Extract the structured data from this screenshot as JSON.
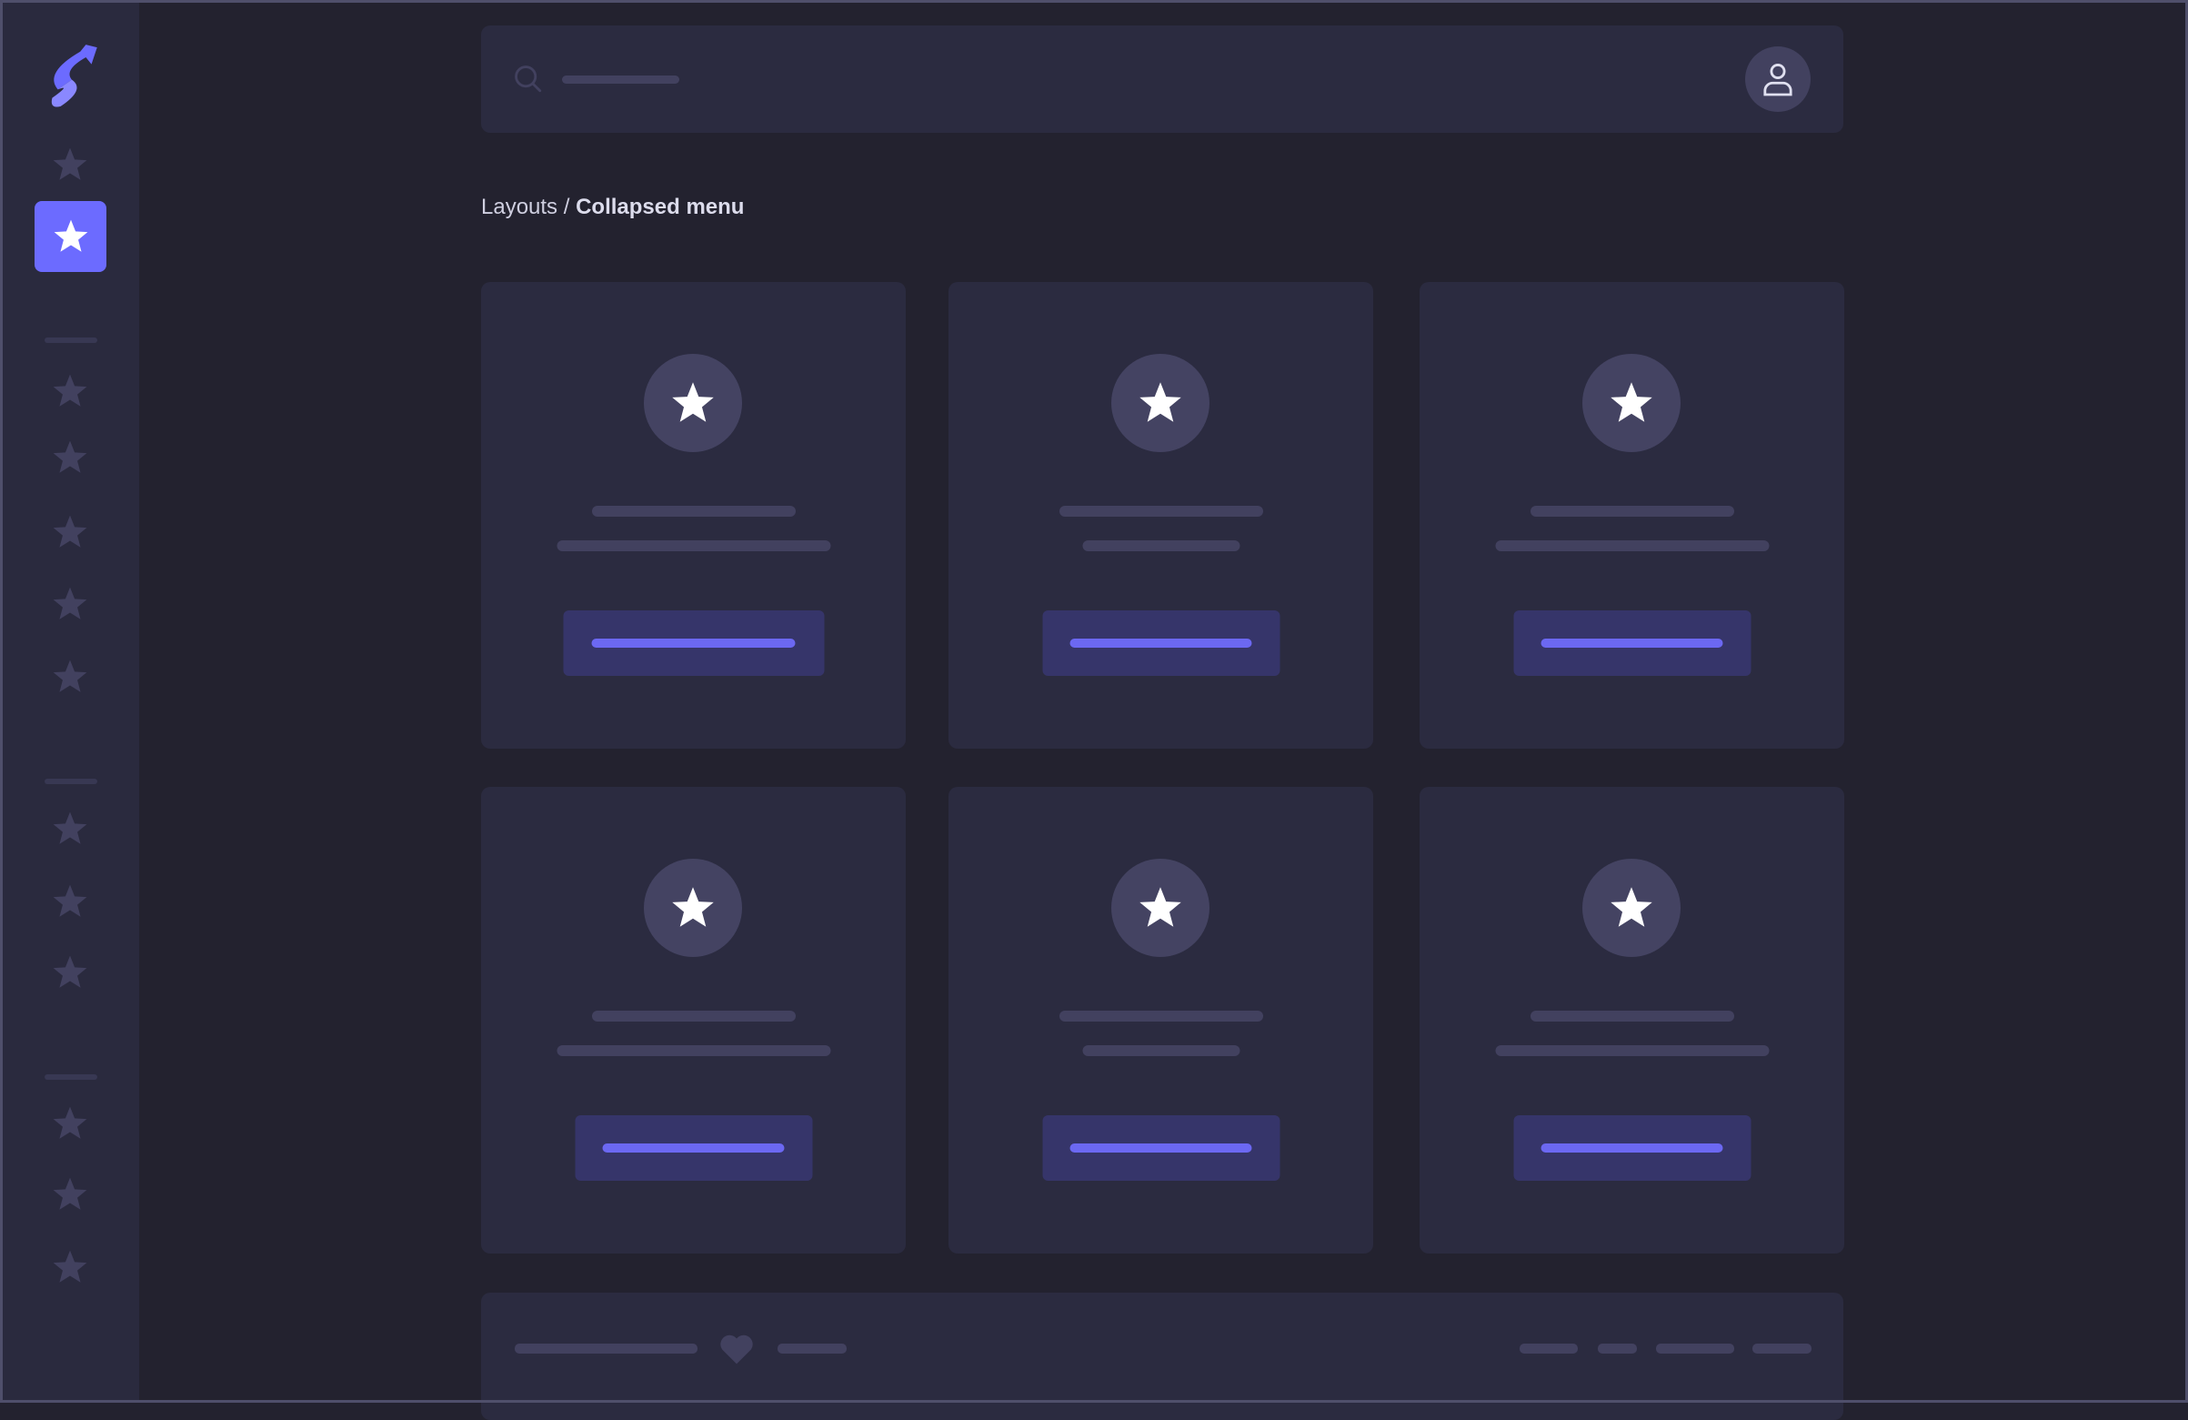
{
  "colors": {
    "accent": "#6c6bff",
    "background": "#23222f",
    "card": "#2b2b40",
    "placeholder": "#42415f",
    "button": "#36356a",
    "button_line": "#6c68f2"
  },
  "sidebar": {
    "logo": "logo-icon",
    "items": [
      {
        "icon": "star-icon",
        "active": false
      },
      {
        "icon": "star-icon",
        "active": true
      },
      {
        "icon": "star-icon"
      },
      {
        "icon": "star-icon"
      },
      {
        "icon": "star-icon"
      },
      {
        "icon": "star-icon"
      },
      {
        "icon": "star-icon"
      },
      {
        "icon": "star-icon"
      },
      {
        "icon": "star-icon"
      },
      {
        "icon": "star-icon"
      },
      {
        "icon": "star-icon"
      },
      {
        "icon": "star-icon"
      },
      {
        "icon": "star-icon"
      }
    ]
  },
  "topbar": {
    "search_icon": "search-icon",
    "avatar_icon": "user-icon"
  },
  "breadcrumb": {
    "parent": "Layouts",
    "separator": " / ",
    "current": "Collapsed menu"
  },
  "cards": [
    {
      "icon": "star-icon"
    },
    {
      "icon": "star-icon"
    },
    {
      "icon": "star-icon"
    },
    {
      "icon": "star-icon"
    },
    {
      "icon": "star-icon"
    },
    {
      "icon": "star-icon"
    }
  ],
  "footer": {
    "icon": "heart-icon"
  }
}
